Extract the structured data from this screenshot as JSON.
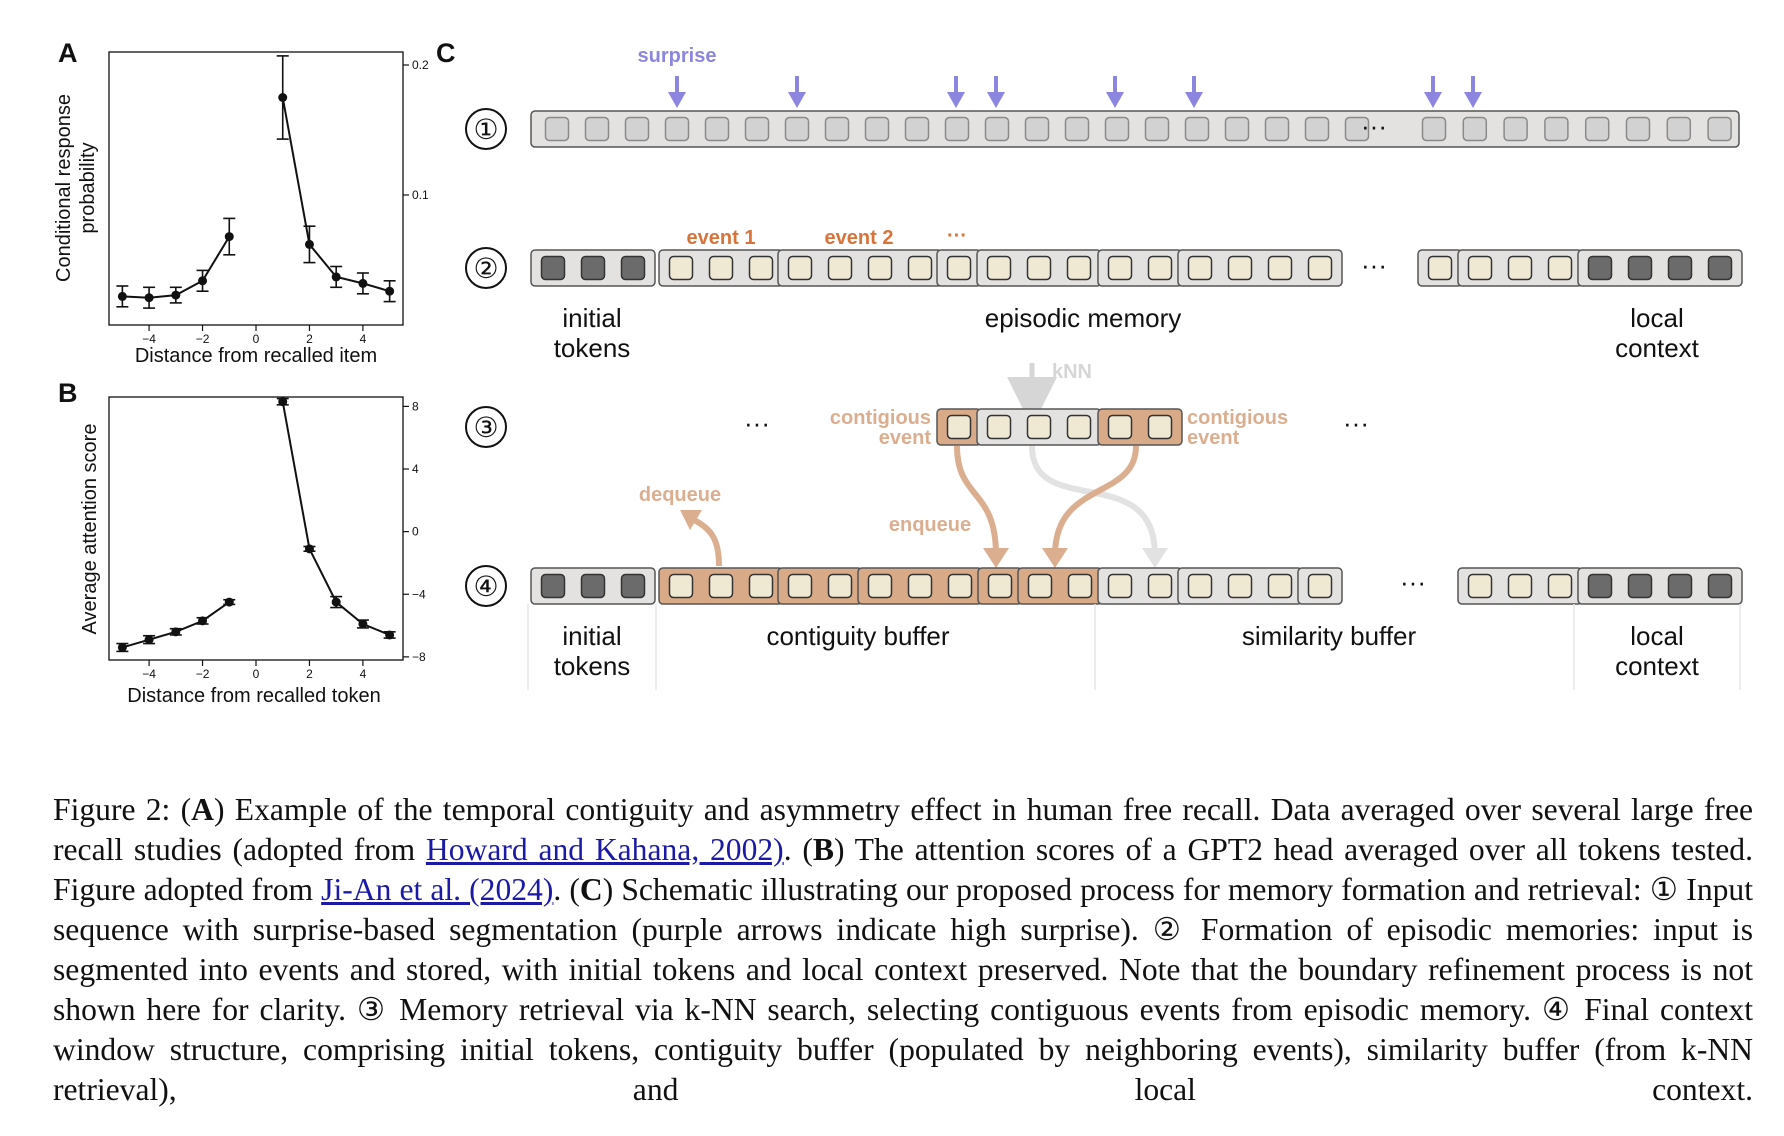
{
  "panels": {
    "A": {
      "letter": "A"
    },
    "B": {
      "letter": "B"
    },
    "C": {
      "letter": "C"
    }
  },
  "chart_data": [
    {
      "panel": "A",
      "type": "line",
      "xlabel": "Distance from recalled item",
      "ylabel_lines": [
        "Conditional response",
        "probability"
      ],
      "x": [
        -5,
        -4,
        -3,
        -2,
        -1,
        1,
        2,
        3,
        4,
        5
      ],
      "y": [
        0.022,
        0.021,
        0.023,
        0.034,
        0.068,
        0.175,
        0.062,
        0.037,
        0.032,
        0.026
      ],
      "err": [
        0.008,
        0.008,
        0.006,
        0.008,
        0.014,
        0.032,
        0.014,
        0.008,
        0.008,
        0.008
      ],
      "xticks": [
        -4,
        -2,
        0,
        2,
        4
      ],
      "xtick_labels": [
        "−4",
        "−2",
        "0",
        "2",
        "4"
      ],
      "yticks": [
        0.1,
        0.2
      ],
      "ytick_labels": [
        "0.1",
        "0.2"
      ],
      "xlim": [
        -5.5,
        5.5
      ],
      "ylim": [
        0.0,
        0.21
      ],
      "y_axis_side": "right"
    },
    {
      "panel": "B",
      "type": "line",
      "xlabel": "Distance from recalled token",
      "ylabel_lines": [
        "Average attention score"
      ],
      "x": [
        -5,
        -4,
        -3,
        -2,
        -1,
        1,
        2,
        3,
        4,
        5
      ],
      "y": [
        -7.4,
        -6.9,
        -6.4,
        -5.7,
        -4.5,
        8.3,
        -1.1,
        -4.5,
        -5.9,
        -6.6
      ],
      "err": [
        0.25,
        0.25,
        0.2,
        0.2,
        0.15,
        0.2,
        0.15,
        0.35,
        0.25,
        0.2
      ],
      "xticks": [
        -4,
        -2,
        0,
        2,
        4
      ],
      "xtick_labels": [
        "−4",
        "−2",
        "0",
        "2",
        "4"
      ],
      "yticks": [
        -8,
        -4,
        0,
        4,
        8
      ],
      "ytick_labels": [
        "−8",
        "−4",
        "0",
        "4",
        "8"
      ],
      "xlim": [
        -5.5,
        5.5
      ],
      "ylim": [
        -8.2,
        8.6
      ],
      "y_axis_side": "right"
    }
  ],
  "schematic": {
    "row_labels": [
      "①",
      "②",
      "③",
      "④"
    ],
    "surprise_label": "surprise",
    "ellipsis": "···",
    "event1": "event 1",
    "event2": "event 2",
    "event_more": "···",
    "initial_tokens": "initial\ntokens",
    "episodic_memory": "episodic memory",
    "local_context": "local\ncontext",
    "knn": "kNN",
    "contigious_event": "contigious\nevent",
    "dequeue": "dequeue",
    "enqueue": "enqueue",
    "contiguity_buffer": "contiguity buffer",
    "similarity_buffer": "similarity buffer",
    "colors": {
      "surprise": "#8c86e0",
      "event": "#d8733a",
      "contig": "#dcae90",
      "knn": "#d6d6d6",
      "dark_token": "#6b6b6b",
      "cream_token": "#efe9d4",
      "gray_token": "#d2d2d2",
      "bar_fill": "#e4e2e0",
      "contig_fill": "#d8aa88"
    }
  },
  "caption": {
    "s1": "Figure 2: (",
    "A": "A",
    "s2": ") Example of the temporal contiguity and asymmetry effect in human free recall. Data averaged over several large free recall studies (adopted from ",
    "link1": "Howard and Kahana, 2002)",
    "s3": ". (",
    "B": "B",
    "s4": ") The attention scores of a GPT2 head averaged over all tokens tested. Figure adopted from ",
    "link2": "Ji-An et al. (2024)",
    "s5": ". (",
    "C": "C",
    "s6": ") Schematic illustrating our proposed process for memory formation and retrieval: ① Input sequence with surprise-based segmentation (purple arrows indicate high surprise). ② Formation of episodic memories: input is segmented into events and stored, with initial tokens and local context preserved. Note that the boundary refinement process is not shown here for clarity. ③ Memory retrieval via k-NN search, selecting contiguous events from episodic memory. ④ Final context window structure, comprising initial tokens, contiguity buffer (populated by neighboring events), similarity buffer (from k-NN retrieval), and local context."
  }
}
